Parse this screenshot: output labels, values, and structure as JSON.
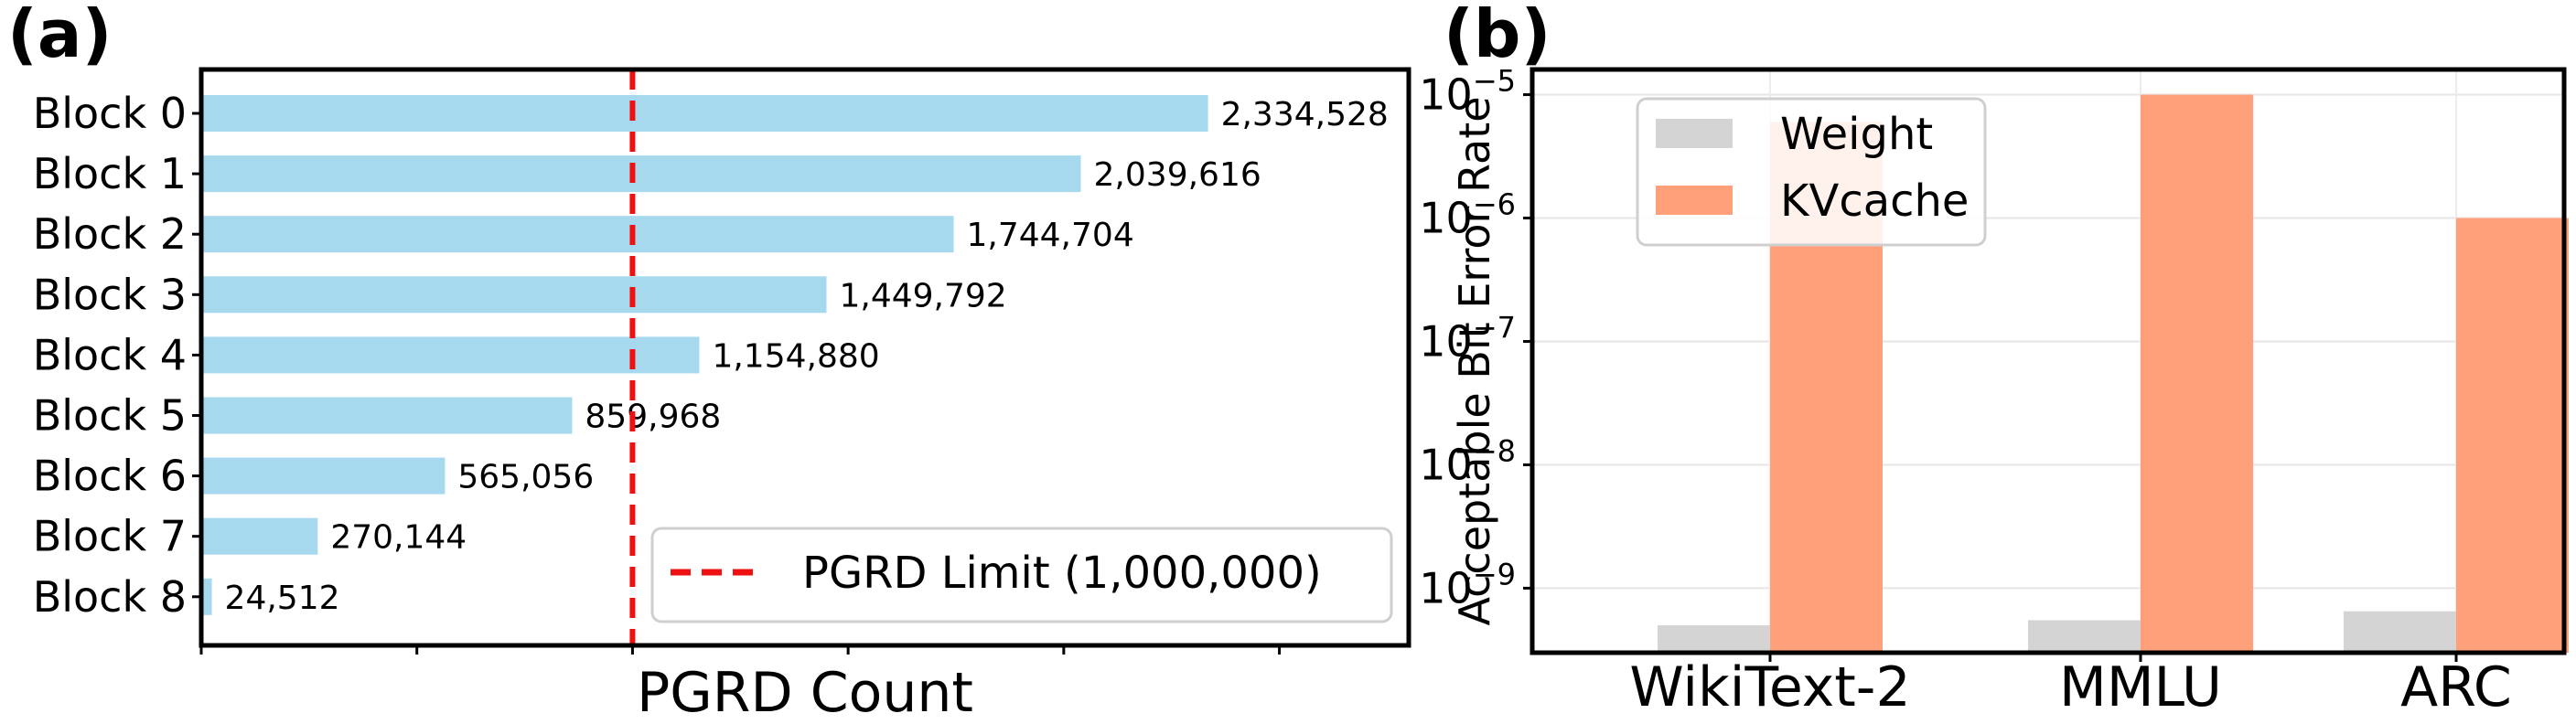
{
  "chart_data": [
    {
      "panel": "(a)",
      "type": "bar",
      "orientation": "horizontal",
      "categories": [
        "Block 0",
        "Block 1",
        "Block 2",
        "Block 3",
        "Block 4",
        "Block 5",
        "Block 6",
        "Block 7",
        "Block 8"
      ],
      "values": [
        2334528,
        2039616,
        1744704,
        1449792,
        1154880,
        859968,
        565056,
        270144,
        24512
      ],
      "value_labels": [
        "2,334,528",
        "2,039,616",
        "1,744,704",
        "1,449,792",
        "1,154,880",
        "859,968",
        "565,056",
        "270,144",
        "24,512"
      ],
      "bar_color": "#a6d8ee",
      "xlabel": "PGRD Count",
      "ylabel": "",
      "xlim": [
        0,
        2800000
      ],
      "reference_line": {
        "value": 1000000,
        "label": "PGRD Limit (1,000,000)",
        "color": "#ee1111",
        "style": "dashed"
      },
      "legend_position": "lower-right"
    },
    {
      "panel": "(b)",
      "type": "bar",
      "scale": "log",
      "categories": [
        "WikiText-2",
        "MMLU",
        "ARC"
      ],
      "series": [
        {
          "name": "Weight",
          "color": "#d4d4d4",
          "values": [
            5e-10,
            5.5e-10,
            6.5e-10
          ]
        },
        {
          "name": "KVcache",
          "color": "#ffa07a",
          "values": [
            6e-06,
            1e-05,
            1e-06
          ]
        }
      ],
      "ylabel": "Acceptable Bit Error Rate",
      "xlabel": "",
      "ylim": [
        3e-10,
        1.6e-05
      ],
      "yticks": [
        {
          "mantissa": "10",
          "exp": "−9",
          "value": 1e-09
        },
        {
          "mantissa": "10",
          "exp": "−8",
          "value": 1e-08
        },
        {
          "mantissa": "10",
          "exp": "−7",
          "value": 1e-07
        },
        {
          "mantissa": "10",
          "exp": "−6",
          "value": 1e-06
        },
        {
          "mantissa": "10",
          "exp": "−5",
          "value": 1e-05
        }
      ],
      "grid": true,
      "legend_position": "top-left"
    }
  ]
}
